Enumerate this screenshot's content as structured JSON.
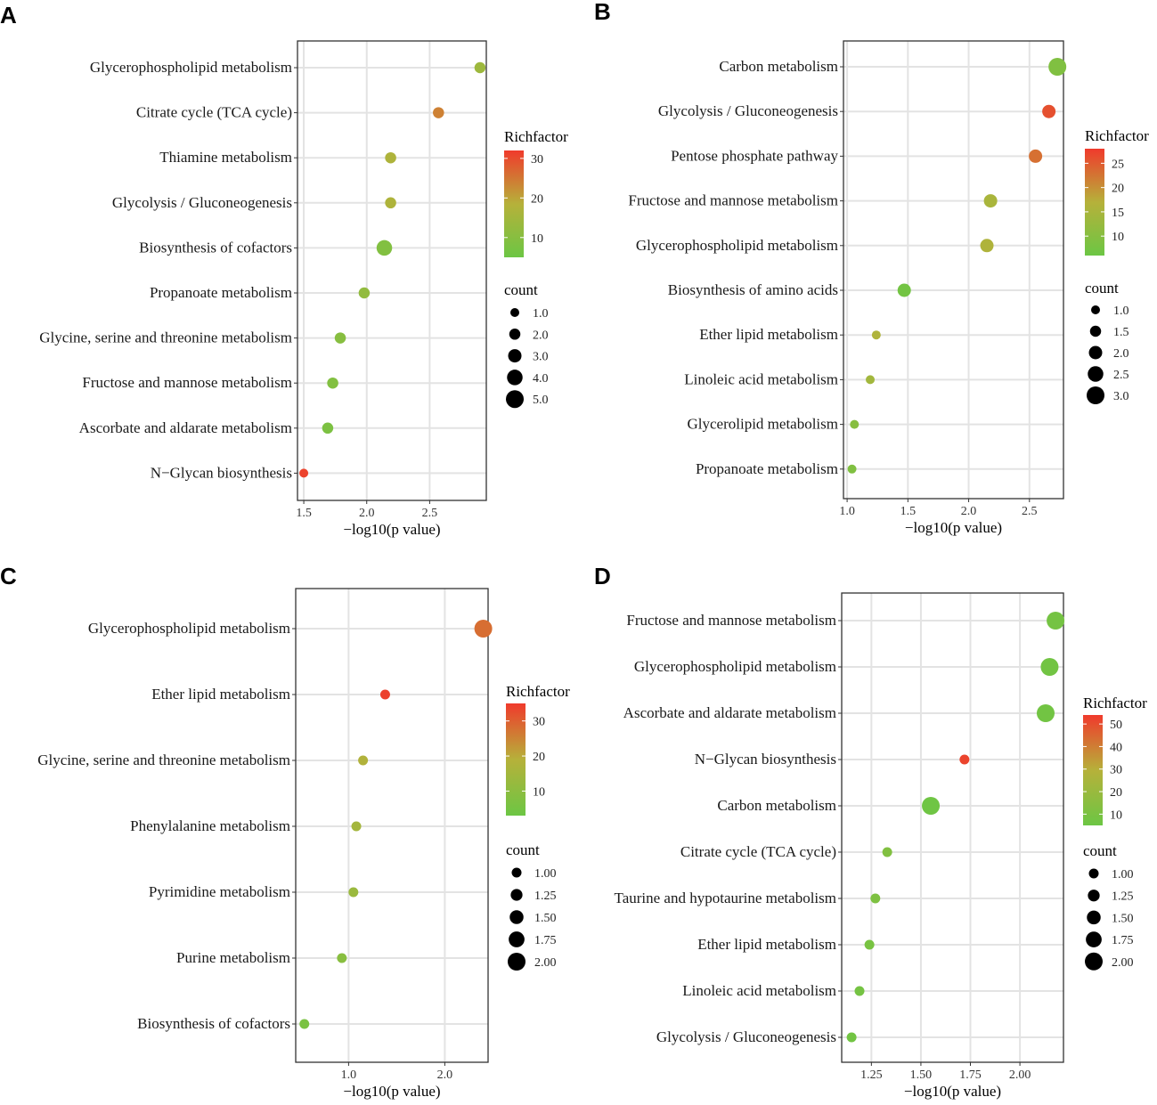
{
  "chart_data": [
    {
      "panel_label": "A",
      "type": "scatter",
      "xlabel": "−log10(p value)",
      "xlim": [
        1.45,
        2.95
      ],
      "xticks": [
        1.5,
        2.0,
        2.5
      ],
      "xtick_labels": [
        "1.5",
        "2.0",
        "2.5"
      ],
      "pathways": [
        {
          "name": "Glycerophospholipid metabolism",
          "x": 2.9,
          "count": 2,
          "richfactor": 14
        },
        {
          "name": "Citrate cycle (TCA cycle)",
          "x": 2.57,
          "count": 2,
          "richfactor": 24
        },
        {
          "name": "Thiamine metabolism",
          "x": 2.19,
          "count": 2,
          "richfactor": 17
        },
        {
          "name": "Glycolysis / Gluconeogenesis",
          "x": 2.19,
          "count": 2,
          "richfactor": 17
        },
        {
          "name": "Biosynthesis of cofactors",
          "x": 2.14,
          "count": 4,
          "richfactor": 9
        },
        {
          "name": "Propanoate metabolism",
          "x": 1.98,
          "count": 2,
          "richfactor": 12
        },
        {
          "name": "Glycine, serine and threonine metabolism",
          "x": 1.79,
          "count": 2,
          "richfactor": 10
        },
        {
          "name": "Fructose and mannose metabolism",
          "x": 1.73,
          "count": 2,
          "richfactor": 9
        },
        {
          "name": "Ascorbate and aldarate metabolism",
          "x": 1.69,
          "count": 2,
          "richfactor": 8
        },
        {
          "name": "N−Glycan biosynthesis",
          "x": 1.5,
          "count": 1,
          "richfactor": 31
        }
      ],
      "color_legend": {
        "title": "Richfactor",
        "min": 5,
        "max": 32,
        "ticks": [
          "10",
          "20",
          "30"
        ],
        "tick_values": [
          10,
          20,
          30
        ]
      },
      "size_legend": {
        "title": "count",
        "labels": [
          "1.0",
          "2.0",
          "3.0",
          "4.0",
          "5.0"
        ],
        "values": [
          1,
          2,
          3,
          4,
          5
        ],
        "range": [
          1,
          5
        ]
      }
    },
    {
      "panel_label": "B",
      "type": "scatter",
      "xlabel": "−log10(p value)",
      "xlim": [
        0.97,
        2.78
      ],
      "xticks": [
        1.0,
        1.5,
        2.0,
        2.5
      ],
      "xtick_labels": [
        "1.0",
        "1.5",
        "2.0",
        "2.5"
      ],
      "pathways": [
        {
          "name": "Carbon metabolism",
          "x": 2.73,
          "count": 3,
          "richfactor": 9
        },
        {
          "name": "Glycolysis / Gluconeogenesis",
          "x": 2.66,
          "count": 2,
          "richfactor": 26
        },
        {
          "name": "Pentose phosphate pathway",
          "x": 2.55,
          "count": 2,
          "richfactor": 23
        },
        {
          "name": "Fructose and mannose metabolism",
          "x": 2.18,
          "count": 2,
          "richfactor": 15
        },
        {
          "name": "Glycerophospholipid metabolism",
          "x": 2.15,
          "count": 2,
          "richfactor": 16
        },
        {
          "name": "Biosynthesis of amino acids",
          "x": 1.47,
          "count": 2,
          "richfactor": 7
        },
        {
          "name": "Ether lipid metabolism",
          "x": 1.24,
          "count": 1,
          "richfactor": 16
        },
        {
          "name": "Linoleic acid metabolism",
          "x": 1.19,
          "count": 1,
          "richfactor": 14
        },
        {
          "name": "Glycerolipid metabolism",
          "x": 1.06,
          "count": 1,
          "richfactor": 10
        },
        {
          "name": "Propanoate metabolism",
          "x": 1.04,
          "count": 1,
          "richfactor": 9
        }
      ],
      "color_legend": {
        "title": "Richfactor",
        "min": 6,
        "max": 28,
        "ticks": [
          "10",
          "15",
          "20",
          "25"
        ],
        "tick_values": [
          10,
          15,
          20,
          25
        ]
      },
      "size_legend": {
        "title": "count",
        "labels": [
          "1.0",
          "1.5",
          "2.0",
          "2.5",
          "3.0"
        ],
        "values": [
          1,
          1.5,
          2,
          2.5,
          3
        ],
        "range": [
          1,
          3
        ]
      }
    },
    {
      "panel_label": "C",
      "type": "scatter",
      "xlabel": "−log10(p value)",
      "xlim": [
        0.45,
        2.45
      ],
      "xticks": [
        1.0,
        2.0
      ],
      "xtick_labels": [
        "1.0",
        "2.0"
      ],
      "pathways": [
        {
          "name": "Glycerophospholipid metabolism",
          "x": 2.4,
          "count": 2,
          "richfactor": 28
        },
        {
          "name": "Ether lipid metabolism",
          "x": 1.38,
          "count": 1,
          "richfactor": 34
        },
        {
          "name": "Glycine, serine and threonine metabolism",
          "x": 1.15,
          "count": 1,
          "richfactor": 18
        },
        {
          "name": "Phenylalanine metabolism",
          "x": 1.08,
          "count": 1,
          "richfactor": 15
        },
        {
          "name": "Pyrimidine metabolism",
          "x": 1.05,
          "count": 1,
          "richfactor": 13
        },
        {
          "name": "Purine metabolism",
          "x": 0.93,
          "count": 1,
          "richfactor": 9
        },
        {
          "name": "Biosynthesis of cofactors",
          "x": 0.54,
          "count": 1,
          "richfactor": 6
        }
      ],
      "color_legend": {
        "title": "Richfactor",
        "min": 3,
        "max": 35,
        "ticks": [
          "10",
          "20",
          "30"
        ],
        "tick_values": [
          10,
          20,
          30
        ]
      },
      "size_legend": {
        "title": "count",
        "labels": [
          "1.00",
          "1.25",
          "1.50",
          "1.75",
          "2.00"
        ],
        "values": [
          1,
          1.25,
          1.5,
          1.75,
          2
        ],
        "range": [
          1,
          2
        ]
      }
    },
    {
      "panel_label": "D",
      "type": "scatter",
      "xlabel": "−log10(p value)",
      "xlim": [
        1.1,
        2.22
      ],
      "xticks": [
        1.25,
        1.5,
        1.75,
        2.0
      ],
      "xtick_labels": [
        "1.25",
        "1.50",
        "1.75",
        "2.00"
      ],
      "pathways": [
        {
          "name": "Fructose and mannose metabolism",
          "x": 2.18,
          "count": 2,
          "richfactor": 8
        },
        {
          "name": "Glycerophospholipid metabolism",
          "x": 2.15,
          "count": 2,
          "richfactor": 7
        },
        {
          "name": "Ascorbate and aldarate metabolism",
          "x": 2.13,
          "count": 2,
          "richfactor": 7
        },
        {
          "name": "N−Glycan biosynthesis",
          "x": 1.72,
          "count": 1,
          "richfactor": 52
        },
        {
          "name": "Carbon metabolism",
          "x": 1.55,
          "count": 2,
          "richfactor": 6
        },
        {
          "name": "Citrate cycle (TCA cycle)",
          "x": 1.33,
          "count": 1,
          "richfactor": 12
        },
        {
          "name": "Taurine and hypotaurine metabolism",
          "x": 1.27,
          "count": 1,
          "richfactor": 11
        },
        {
          "name": "Ether lipid metabolism",
          "x": 1.24,
          "count": 1,
          "richfactor": 9
        },
        {
          "name": "Linoleic acid metabolism",
          "x": 1.19,
          "count": 1,
          "richfactor": 8
        },
        {
          "name": "Glycolysis / Gluconeogenesis",
          "x": 1.15,
          "count": 1,
          "richfactor": 7
        }
      ],
      "color_legend": {
        "title": "Richfactor",
        "min": 5,
        "max": 54,
        "ticks": [
          "10",
          "20",
          "30",
          "40",
          "50"
        ],
        "tick_values": [
          10,
          20,
          30,
          40,
          50
        ]
      },
      "size_legend": {
        "title": "count",
        "labels": [
          "1.00",
          "1.25",
          "1.50",
          "1.75",
          "2.00"
        ],
        "values": [
          1,
          1.25,
          1.5,
          1.75,
          2
        ],
        "range": [
          1,
          2
        ]
      }
    }
  ],
  "colors": {
    "low": "#6cc644",
    "mid": "#b6b13a",
    "high": "#f03a2c"
  }
}
